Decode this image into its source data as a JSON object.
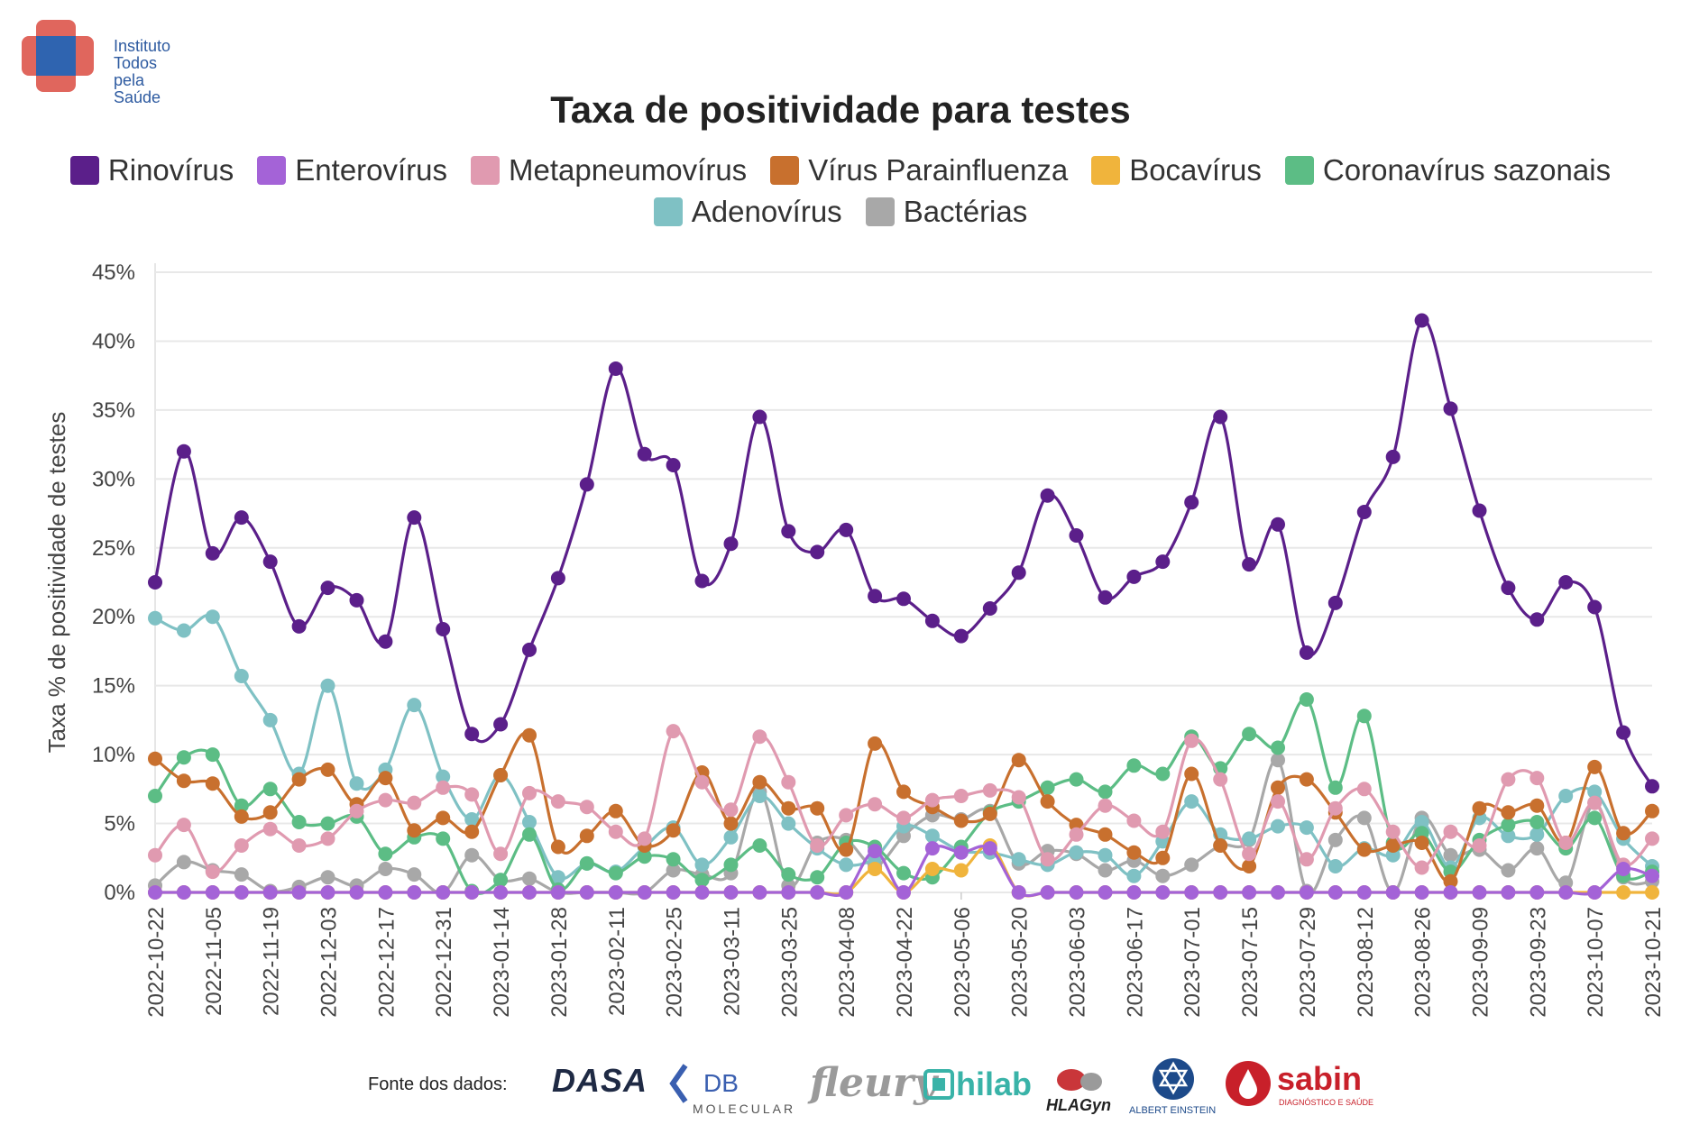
{
  "logo": {
    "lines": [
      "Instituto",
      "Todos",
      "pela",
      "Saúde"
    ]
  },
  "chart_data": {
    "type": "line",
    "title": "Taxa de positividade para testes",
    "xlabel": "",
    "ylabel": "Taxa % de positividade de testes",
    "ylim": [
      0,
      45
    ],
    "yticks": [
      "0%",
      "5%",
      "10%",
      "15%",
      "20%",
      "25%",
      "30%",
      "35%",
      "40%",
      "45%"
    ],
    "grid": true,
    "legend_placement": "top",
    "x_tick_labels": [
      "2022-10-22",
      "2022-11-05",
      "2022-11-19",
      "2022-12-03",
      "2022-12-17",
      "2022-12-31",
      "2023-01-14",
      "2023-01-28",
      "2023-02-11",
      "2023-02-25",
      "2023-03-11",
      "2023-03-25",
      "2023-04-08",
      "2023-04-22",
      "2023-05-06",
      "2023-05-20",
      "2023-06-03",
      "2023-06-17",
      "2023-07-01",
      "2023-07-15",
      "2023-07-29",
      "2023-08-12",
      "2023-08-26",
      "2023-09-09",
      "2023-09-23",
      "2023-10-07",
      "2023-10-21"
    ],
    "x": [
      "2022-10-22",
      "2022-10-29",
      "2022-11-05",
      "2022-11-12",
      "2022-11-19",
      "2022-11-26",
      "2022-12-03",
      "2022-12-10",
      "2022-12-17",
      "2022-12-24",
      "2022-12-31",
      "2023-01-07",
      "2023-01-14",
      "2023-01-21",
      "2023-01-28",
      "2023-02-04",
      "2023-02-11",
      "2023-02-18",
      "2023-02-25",
      "2023-03-04",
      "2023-03-11",
      "2023-03-18",
      "2023-03-25",
      "2023-04-01",
      "2023-04-08",
      "2023-04-15",
      "2023-04-22",
      "2023-04-29",
      "2023-05-06",
      "2023-05-13",
      "2023-05-20",
      "2023-05-27",
      "2023-06-03",
      "2023-06-10",
      "2023-06-17",
      "2023-06-24",
      "2023-07-01",
      "2023-07-08",
      "2023-07-15",
      "2023-07-22",
      "2023-07-29",
      "2023-08-05",
      "2023-08-12",
      "2023-08-19",
      "2023-08-26",
      "2023-09-02",
      "2023-09-09",
      "2023-09-16",
      "2023-09-23",
      "2023-09-30",
      "2023-10-07",
      "2023-10-14",
      "2023-10-21"
    ],
    "series": [
      {
        "name": "Rinovírus",
        "color": "#5b1f8a",
        "values": [
          22.5,
          32,
          24.6,
          27.2,
          24,
          19.3,
          22.1,
          21.2,
          18.2,
          27.2,
          19.1,
          11.5,
          12.2,
          17.6,
          22.8,
          29.6,
          38,
          31.8,
          31,
          22.6,
          25.3,
          34.5,
          26.2,
          24.7,
          26.3,
          21.5,
          21.3,
          19.7,
          18.6,
          20.6,
          23.2,
          28.8,
          25.9,
          21.4,
          22.9,
          24,
          28.3,
          34.5,
          23.8,
          26.7,
          17.4,
          21,
          27.6,
          31.6,
          41.5,
          35.1,
          27.7,
          22.1,
          19.8,
          22.5,
          20.7,
          11.6,
          7.7
        ]
      },
      {
        "name": "Enterovírus",
        "color": "#a463d7",
        "values": [
          0,
          0,
          0,
          0,
          0,
          0,
          0,
          0,
          0,
          0,
          0,
          0,
          0,
          0,
          0,
          0,
          0,
          0,
          0,
          0,
          0,
          0,
          0,
          0,
          0,
          3,
          0,
          3.2,
          2.9,
          3.2,
          0,
          0,
          0,
          0,
          0,
          0,
          0,
          0,
          0,
          0,
          0,
          0,
          0,
          0,
          0,
          0,
          0,
          0,
          0,
          0,
          0,
          1.7,
          1.2
        ]
      },
      {
        "name": "Metapneumovírus",
        "color": "#e09ab0",
        "values": [
          2.7,
          4.9,
          1.5,
          3.4,
          4.6,
          3.4,
          3.9,
          5.9,
          6.7,
          6.5,
          7.6,
          7.1,
          2.8,
          7.2,
          6.6,
          6.2,
          4.4,
          3.9,
          11.7,
          8,
          6,
          11.3,
          8,
          3.4,
          5.6,
          6.4,
          5.4,
          6.7,
          7,
          7.4,
          6.9,
          2.4,
          4.2,
          6.3,
          5.2,
          4.4,
          11,
          8.2,
          2.8,
          6.6,
          2.4,
          6.1,
          7.5,
          4.4,
          1.8,
          4.4,
          3.4,
          8.2,
          8.3,
          3.6,
          6.5,
          2,
          3.9
        ]
      },
      {
        "name": "Vírus Parainfluenza",
        "color": "#c8702e",
        "values": [
          9.7,
          8.1,
          7.9,
          5.5,
          5.8,
          8.2,
          8.9,
          6.4,
          8.3,
          4.5,
          5.4,
          4.4,
          8.5,
          11.4,
          3.3,
          4.1,
          5.9,
          3.4,
          4.5,
          8.7,
          5,
          8,
          6.1,
          6.1,
          3.1,
          10.8,
          7.3,
          6.2,
          5.2,
          5.7,
          9.6,
          6.6,
          4.9,
          4.2,
          2.9,
          2.5,
          8.6,
          3.4,
          1.9,
          7.6,
          8.2,
          5.8,
          3.1,
          3.4,
          3.6,
          0.8,
          6.1,
          5.8,
          6.3,
          3.6,
          9.1,
          4.3,
          5.9
        ]
      },
      {
        "name": "Bocavírus",
        "color": "#f0b43c",
        "values": [
          0,
          0,
          0,
          0,
          0,
          0,
          0,
          0,
          0,
          0,
          0,
          0,
          0,
          0,
          0,
          0,
          0,
          0,
          0,
          0,
          0,
          0,
          0,
          0,
          0,
          1.7,
          0,
          1.7,
          1.6,
          3.4,
          0,
          0,
          0,
          0,
          0,
          0,
          0,
          0,
          0,
          0,
          0,
          0,
          0,
          0,
          0,
          0,
          0,
          0,
          0,
          0,
          0,
          0,
          0
        ]
      },
      {
        "name": "Coronavírus sazonais",
        "color": "#5cbd85",
        "values": [
          7,
          9.8,
          10,
          6.3,
          7.5,
          5.1,
          5,
          5.5,
          2.8,
          4,
          3.9,
          0.1,
          0.9,
          4.2,
          0.2,
          2.1,
          1.4,
          2.6,
          2.4,
          0.9,
          2,
          3.4,
          1.3,
          1.1,
          3.6,
          3.3,
          1.4,
          1.1,
          3.3,
          5.8,
          6.6,
          7.6,
          8.2,
          7.3,
          9.2,
          8.6,
          11.3,
          9,
          11.5,
          10.5,
          14,
          7.6,
          12.8,
          3.6,
          4.3,
          1.5,
          3.8,
          4.9,
          5.1,
          3.2,
          5.4,
          1.2,
          1.5
        ]
      },
      {
        "name": "Adenovírus",
        "color": "#7fc1c4",
        "values": [
          19.9,
          19,
          20,
          15.7,
          12.5,
          8.6,
          15,
          7.9,
          8.9,
          13.6,
          8.4,
          5.3,
          8.5,
          5.1,
          1.1,
          2.1,
          1.5,
          3.3,
          4.7,
          2,
          4,
          7,
          5,
          3.2,
          2,
          2.5,
          4.8,
          4.1,
          3,
          2.9,
          2.4,
          2,
          2.9,
          2.7,
          1.2,
          3.7,
          6.6,
          4.2,
          3.9,
          4.8,
          4.7,
          1.9,
          3.2,
          2.7,
          5.1,
          1.8,
          5.4,
          4.1,
          4.2,
          7,
          7.3,
          3.9,
          1.9
        ]
      },
      {
        "name": "Bactérias",
        "color": "#a8a8a8",
        "values": [
          0.5,
          2.2,
          1.6,
          1.3,
          0.1,
          0.4,
          1.1,
          0.5,
          1.7,
          1.3,
          0,
          2.7,
          0.9,
          1,
          0,
          0,
          0,
          0,
          1.6,
          1.3,
          1.4,
          7.3,
          0.5,
          3.6,
          3.8,
          1.9,
          4.1,
          5.6,
          5.3,
          5.9,
          2.1,
          3,
          2.8,
          1.6,
          2.3,
          1.2,
          2,
          3.4,
          3.8,
          9.6,
          0.1,
          3.8,
          5.4,
          0,
          5.4,
          2.7,
          3.1,
          1.6,
          3.2,
          0.7,
          6.5,
          1.1,
          0.8
        ]
      }
    ]
  },
  "footer": {
    "label": "Fonte dos dados:",
    "sources": [
      "DASA",
      "DB Molecular",
      "fleury",
      "hilab",
      "HLAGyn",
      "Albert Einstein",
      "sabin"
    ],
    "einstein_sub": "ALBERT EINSTEIN",
    "sabin_sub": "DIAGNÓSTICO E SAÚDE",
    "db_sub": "MOLECULAR"
  }
}
